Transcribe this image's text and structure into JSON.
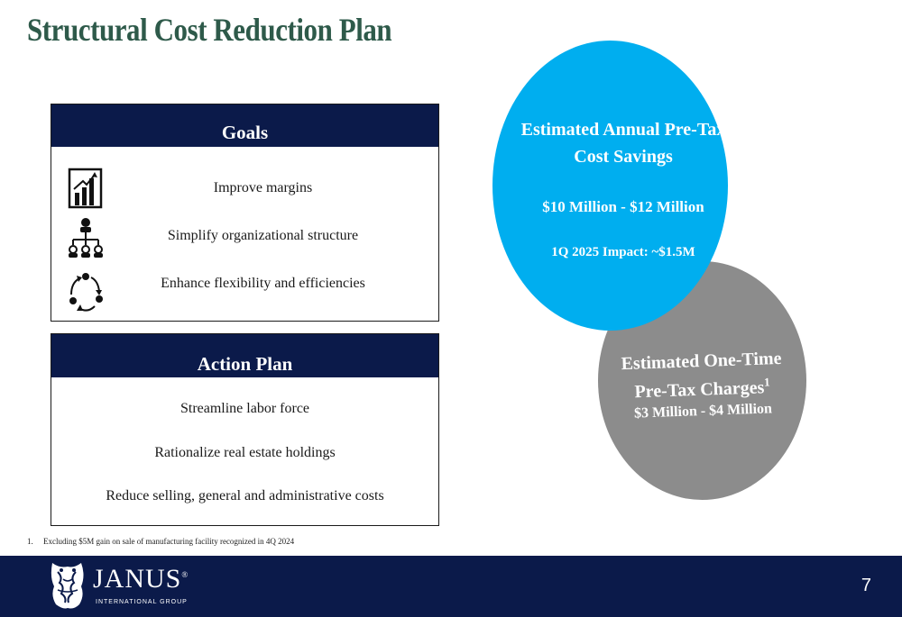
{
  "title": "Structural Cost Reduction Plan",
  "goals": {
    "heading": "Goals",
    "items": [
      {
        "text": "Improve margins",
        "icon": "bar-chart-growth-icon"
      },
      {
        "text": "Simplify organizational structure",
        "icon": "org-chart-icon"
      },
      {
        "text": "Enhance flexibility and efficiencies",
        "icon": "cycle-arrows-icon"
      }
    ]
  },
  "action_plan": {
    "heading": "Action Plan",
    "items": [
      "Streamline labor force",
      "Rationalize real estate holdings",
      "Reduce selling, general and administrative costs"
    ]
  },
  "savings_circle": {
    "line1": "Estimated  Annual Pre-Tax",
    "line2": "Cost Savings",
    "range": "$10 Million - $12 Million",
    "impact": "1Q 2025 Impact: ~$1.5M",
    "color": "#00aeef"
  },
  "charges_circle": {
    "line1": "Estimated One-Time",
    "line2": "Pre-Tax Charges",
    "superscript": "1",
    "range": "$3 Million - $4 Million",
    "color": "#8c8c8c"
  },
  "footnote": {
    "number": "1.",
    "text": "Excluding $5M gain on sale of manufacturing facility recognized in 4Q 2024"
  },
  "footer": {
    "logo_name": "JANUS",
    "logo_reg": "®",
    "logo_sub": "INTERNATIONAL GROUP",
    "page_number": "7",
    "color": "#0b1a4a"
  }
}
